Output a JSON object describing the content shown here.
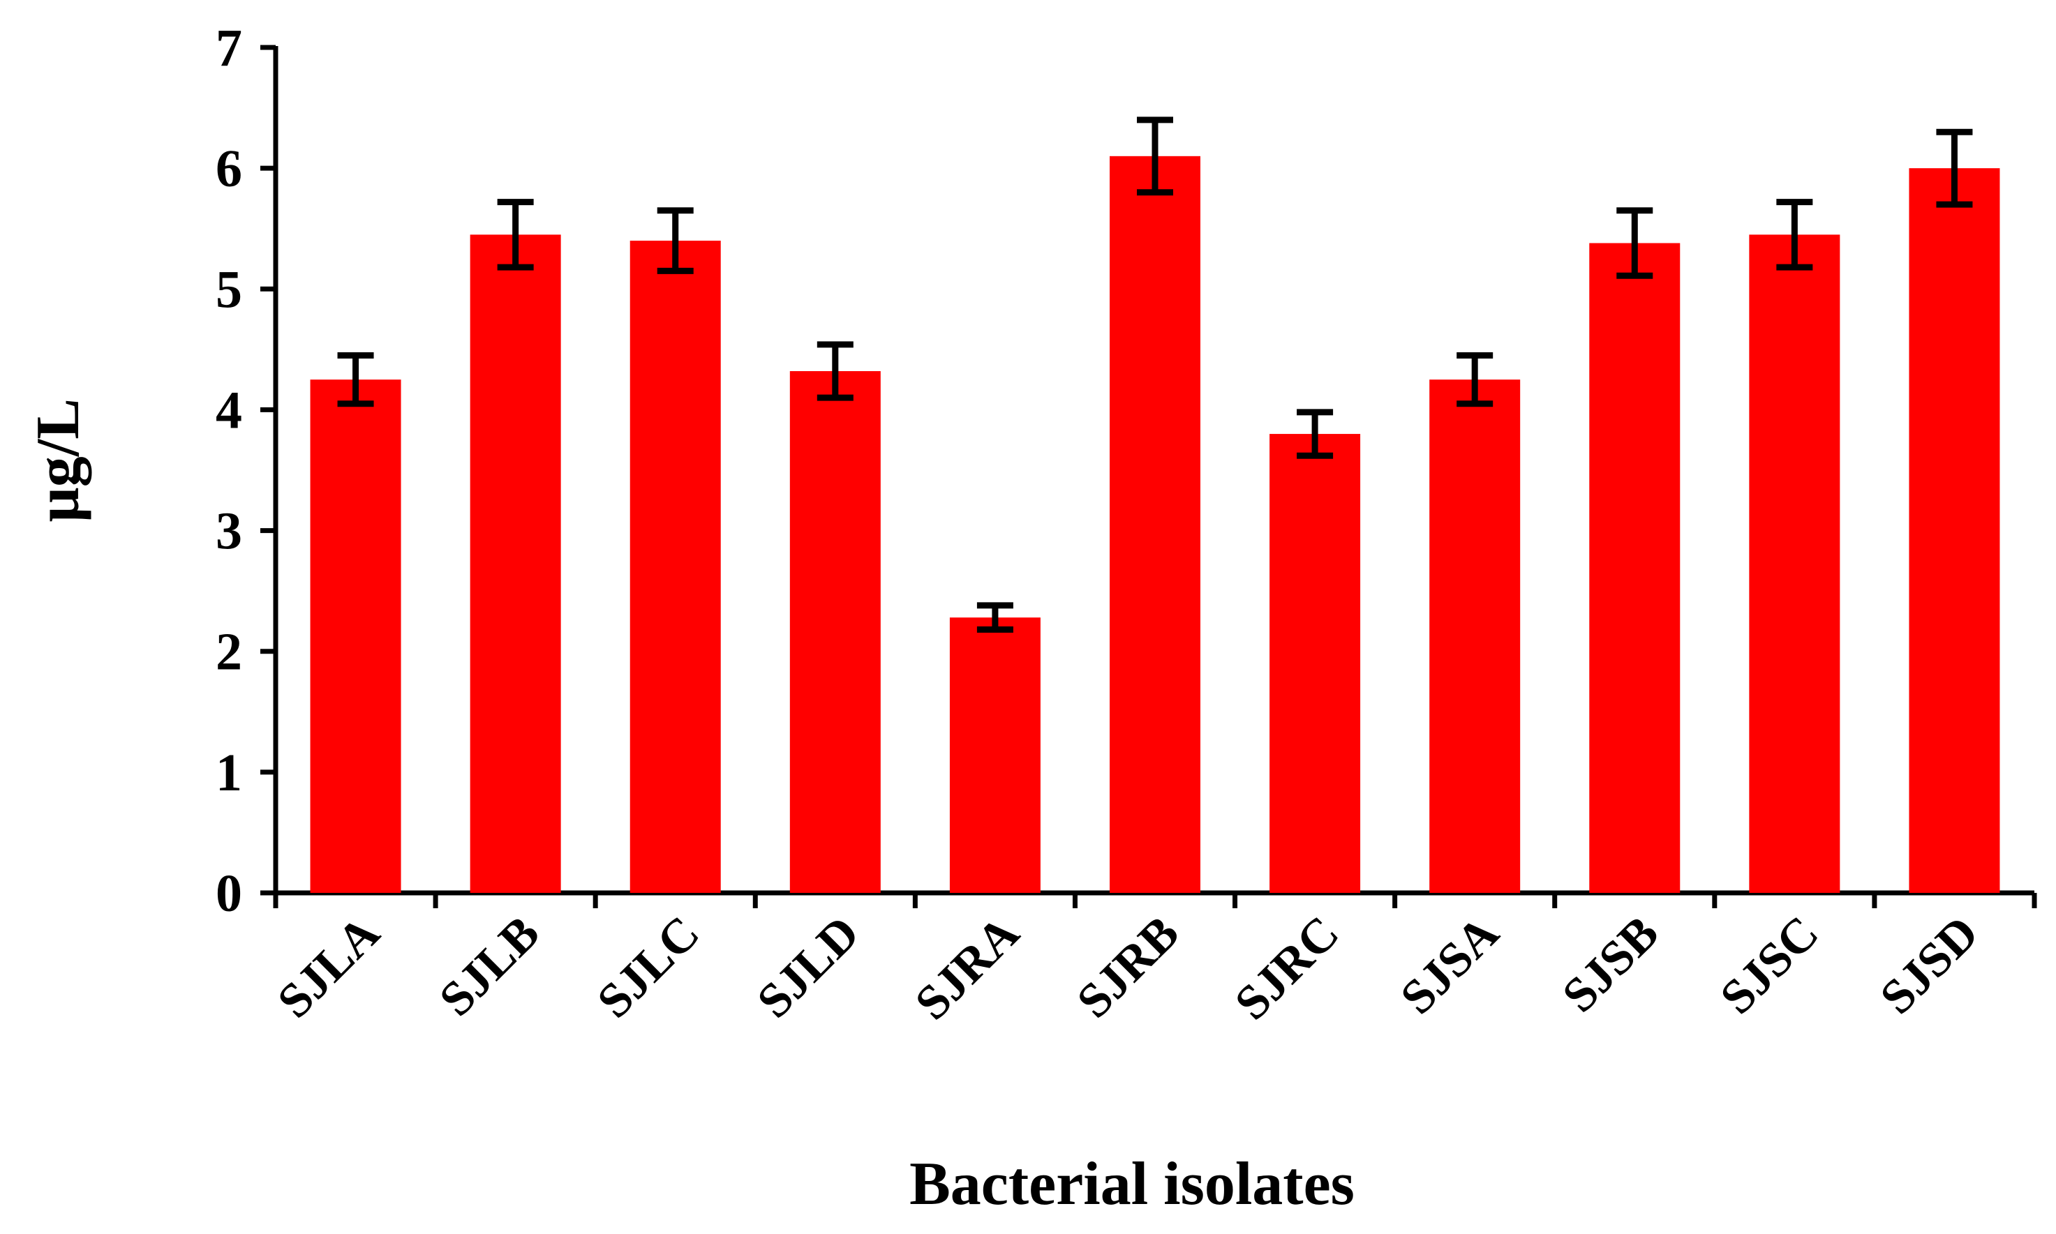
{
  "chart_data": {
    "type": "bar",
    "title": "",
    "xlabel": "Bacterial isolates",
    "ylabel": "µg/L",
    "categories": [
      "SJLA",
      "SJLB",
      "SJLC",
      "SJLD",
      "SJRA",
      "SJRB",
      "SJRC",
      "SJSA",
      "SJSB",
      "SJSC",
      "SJSD"
    ],
    "values": [
      4.25,
      5.45,
      5.4,
      4.32,
      2.28,
      6.1,
      3.8,
      4.25,
      5.38,
      5.45,
      6.0
    ],
    "errors": [
      0.2,
      0.27,
      0.25,
      0.22,
      0.1,
      0.3,
      0.18,
      0.2,
      0.27,
      0.27,
      0.3
    ],
    "yticks": [
      "0",
      "1",
      "2",
      "3",
      "4",
      "5",
      "6",
      "7"
    ],
    "ylim": [
      0,
      7
    ],
    "grid": false,
    "legend": "none",
    "colors": {
      "bar": "#ff0000",
      "error_bar": "#000000",
      "axis": "#000000"
    }
  }
}
